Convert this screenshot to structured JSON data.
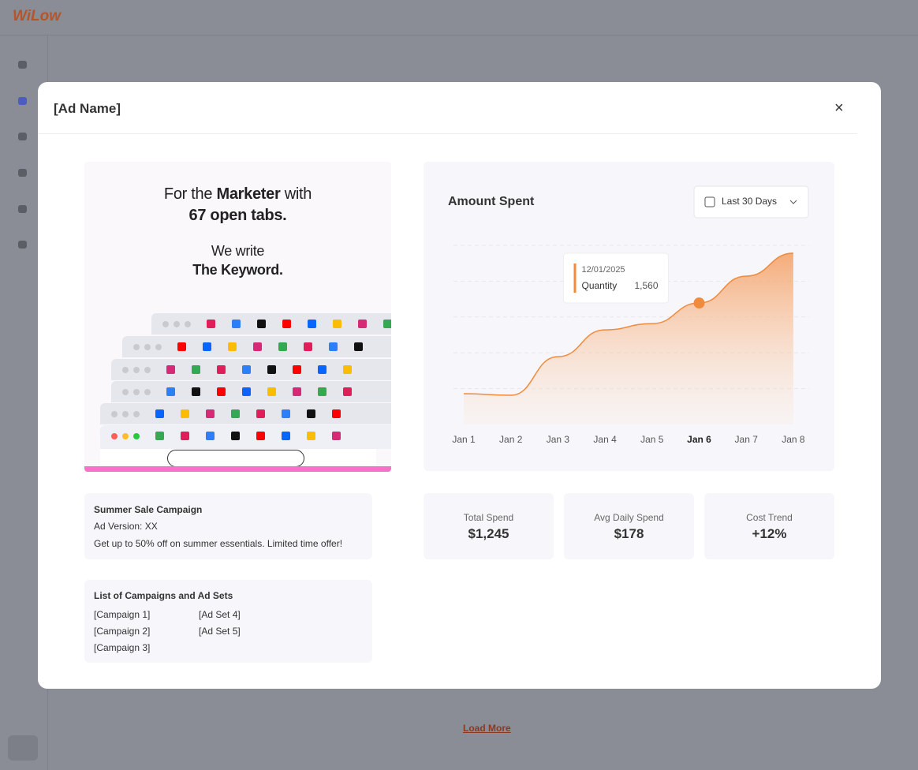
{
  "app": {
    "logo": "WiLow",
    "load_more": "Load More"
  },
  "modal": {
    "title": "[Ad Name]",
    "close": "×"
  },
  "ad_creative": {
    "line_1_start": "For the",
    "line_1_bold": "Marketer",
    "line_1_end": "with",
    "line_2": "67 open tabs.",
    "line_3": "We write",
    "line_4": "The Keyword."
  },
  "ad_details": {
    "name": "Summer Sale Campaign",
    "version": "Ad Version: XX",
    "description": "Get up to 50% off on summer essentials. Limited time offer!"
  },
  "campaign_list": {
    "title": "List of Campaigns and Ad Sets",
    "campaigns": [
      "[Campaign 1]",
      "[Campaign 2]",
      "[Campaign 3]"
    ],
    "ad_sets": [
      "[Ad Set 4]",
      "[Ad Set 5]"
    ]
  },
  "stats": [
    {
      "label": "Total Spend",
      "value": "$1,245"
    },
    {
      "label": "Avg Daily Spend",
      "value": "$178"
    },
    {
      "label": "Cost Trend",
      "value": "+12%"
    }
  ],
  "chart_data": {
    "type": "area",
    "title": "Amount Spent",
    "range_selector": "Last 30 Days",
    "categories": [
      "Jan 1",
      "Jan 2",
      "Jan 3",
      "Jan 4",
      "Jan 5",
      "Jan 6",
      "Jan 7",
      "Jan 8"
    ],
    "values": [
      395,
      375,
      870,
      1215,
      1295,
      1560,
      1905,
      2200
    ],
    "color": "#f08a3c",
    "ylim": [
      0,
      2300
    ],
    "yticks": [
      460,
      920,
      1380,
      1840,
      2300
    ],
    "grid": true,
    "active_index": 5,
    "tooltip": {
      "date": "12/01/2025",
      "name": "Quantity",
      "value_label": "1,560"
    }
  }
}
